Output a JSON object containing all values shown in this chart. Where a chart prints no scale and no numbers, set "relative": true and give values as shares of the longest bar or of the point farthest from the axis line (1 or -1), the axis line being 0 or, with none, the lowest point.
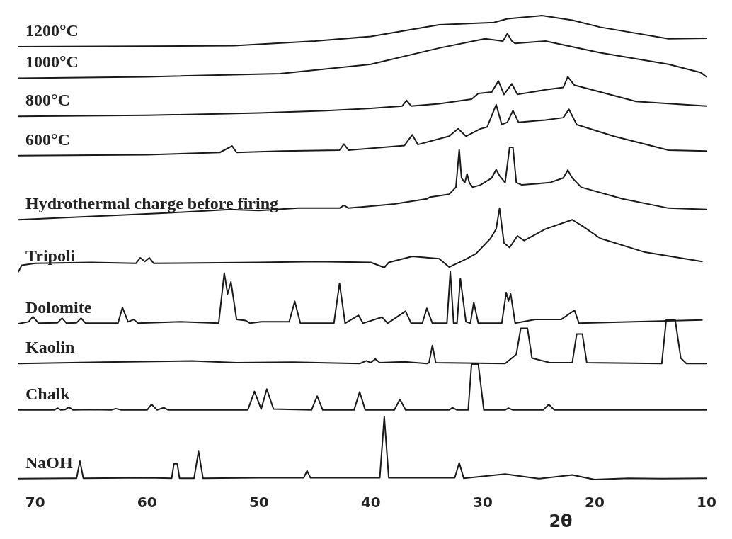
{
  "chart_data": {
    "type": "line",
    "xlabel": "2θ",
    "xlim": [
      71.5,
      10
    ],
    "xticks": [
      70,
      60,
      50,
      40,
      30,
      20,
      10
    ],
    "relative": true,
    "marker": "none",
    "line_style": "solid",
    "series": [
      {
        "name": "1200°C",
        "color": "#1a1a1a",
        "x": [
          71.5,
          60,
          52.2,
          45,
          40.0,
          33.9,
          29,
          27.8,
          24.7,
          22,
          19.5,
          13.4,
          10
        ],
        "values": [
          0.933,
          0.934,
          0.935,
          0.945,
          0.955,
          0.98,
          0.985,
          0.993,
          1.0,
          0.99,
          0.975,
          0.95,
          0.951
        ]
      },
      {
        "name": "1000°C",
        "color": "#1a1a1a",
        "x": [
          71.5,
          60,
          48.1,
          40.0,
          33.9,
          29.8,
          28.2,
          27.8,
          27.4,
          27.1,
          24.4,
          19.5,
          13.4,
          10.5,
          10
        ],
        "values": [
          0.865,
          0.868,
          0.875,
          0.895,
          0.93,
          0.95,
          0.945,
          0.961,
          0.945,
          0.94,
          0.945,
          0.92,
          0.895,
          0.877,
          0.868
        ]
      },
      {
        "name": "800°C",
        "color": "#1a1a1a",
        "x": [
          71.5,
          60,
          50,
          44.0,
          40,
          37.2,
          36.8,
          36.4,
          33.9,
          31,
          30.4,
          29.2,
          28.6,
          28.1,
          27.4,
          26.9,
          24.4,
          22.8,
          22.4,
          21.8,
          16.3,
          10
        ],
        "values": [
          0.783,
          0.785,
          0.79,
          0.795,
          0.8,
          0.805,
          0.817,
          0.805,
          0.81,
          0.82,
          0.832,
          0.835,
          0.859,
          0.83,
          0.853,
          0.83,
          0.84,
          0.845,
          0.868,
          0.85,
          0.815,
          0.805
        ]
      },
      {
        "name": "600°C",
        "color": "#1a1a1a",
        "x": [
          71.5,
          60,
          53.5,
          52.4,
          52.0,
          48,
          42.8,
          42.4,
          42.0,
          37,
          36.3,
          35.8,
          33,
          32.2,
          31.5,
          30.2,
          29.6,
          28.8,
          28.3,
          27.8,
          27.3,
          26.8,
          24.4,
          22.8,
          22.3,
          21.6,
          18.3,
          13.4,
          10
        ],
        "values": [
          0.698,
          0.7,
          0.705,
          0.719,
          0.705,
          0.708,
          0.71,
          0.723,
          0.71,
          0.72,
          0.743,
          0.722,
          0.74,
          0.756,
          0.74,
          0.756,
          0.76,
          0.808,
          0.765,
          0.77,
          0.795,
          0.77,
          0.775,
          0.78,
          0.798,
          0.765,
          0.74,
          0.71,
          0.708
        ]
      },
      {
        "name": "Hydrothermal charge before firing",
        "color": "#1a1a1a",
        "x": [
          71.5,
          67,
          62.4,
          58,
          52.6,
          50,
          46.5,
          42.8,
          42.4,
          42.0,
          37.9,
          35,
          34.7,
          33,
          32.4,
          32.1,
          31.9,
          31.6,
          31.4,
          31.2,
          30.9,
          30.2,
          29.2,
          28.8,
          28.5,
          28.0,
          27.6,
          27.3,
          27.0,
          26.5,
          24,
          22.8,
          22.4,
          22.0,
          21.2,
          17.5,
          13.4,
          10
        ],
        "values": [
          0.56,
          0.565,
          0.57,
          0.575,
          0.582,
          0.58,
          0.585,
          0.585,
          0.591,
          0.585,
          0.594,
          0.605,
          0.609,
          0.615,
          0.63,
          0.711,
          0.65,
          0.64,
          0.659,
          0.64,
          0.63,
          0.635,
          0.65,
          0.668,
          0.655,
          0.64,
          0.716,
          0.716,
          0.64,
          0.635,
          0.64,
          0.65,
          0.667,
          0.65,
          0.63,
          0.605,
          0.585,
          0.582
        ]
      },
      {
        "name": "Tripoli",
        "color": "#1a1a1a",
        "x": [
          71.5,
          71.2,
          70,
          65,
          61,
          60.6,
          60.2,
          59.8,
          59.4,
          50,
          45,
          40,
          38.8,
          38.4,
          36.3,
          33.9,
          33.0,
          31.5,
          30.6,
          29.3,
          28.8,
          28.5,
          28.1,
          27.6,
          26.9,
          26.3,
          24.4,
          22.0,
          21.0,
          19.5,
          15.5,
          10.4
        ],
        "values": [
          0.448,
          0.462,
          0.466,
          0.468,
          0.466,
          0.478,
          0.47,
          0.478,
          0.466,
          0.468,
          0.47,
          0.468,
          0.457,
          0.468,
          0.481,
          0.476,
          0.458,
          0.475,
          0.487,
          0.52,
          0.54,
          0.585,
          0.51,
          0.5,
          0.525,
          0.515,
          0.54,
          0.56,
          0.545,
          0.52,
          0.49,
          0.47
        ]
      },
      {
        "name": "Dolomite",
        "color": "#1a1a1a",
        "x": [
          71.5,
          70.6,
          70.2,
          69.7,
          68,
          67.6,
          67.2,
          66.3,
          65.9,
          65.5,
          62.6,
          62.2,
          61.7,
          61.2,
          60.8,
          57,
          53.6,
          53.1,
          52.8,
          52.5,
          52.0,
          51.2,
          50.8,
          49.8,
          47.3,
          46.8,
          46.3,
          43.3,
          42.8,
          42.3,
          41.1,
          40.7,
          39.0,
          38.5,
          36.9,
          36.4,
          35.4,
          35.0,
          34.5,
          33.2,
          32.9,
          32.6,
          32.3,
          32.0,
          31.5,
          31.1,
          30.8,
          30.4,
          28.3,
          27.9,
          27.7,
          27.5,
          27.1,
          25.3,
          23.0,
          21.8,
          21.4,
          10.4
        ],
        "values": [
          0.336,
          0.34,
          0.351,
          0.337,
          0.338,
          0.348,
          0.337,
          0.338,
          0.348,
          0.337,
          0.337,
          0.371,
          0.34,
          0.345,
          0.337,
          0.34,
          0.337,
          0.445,
          0.4,
          0.426,
          0.345,
          0.343,
          0.337,
          0.34,
          0.34,
          0.384,
          0.337,
          0.337,
          0.423,
          0.337,
          0.354,
          0.337,
          0.35,
          0.337,
          0.363,
          0.337,
          0.337,
          0.369,
          0.337,
          0.337,
          0.448,
          0.337,
          0.337,
          0.433,
          0.34,
          0.337,
          0.382,
          0.337,
          0.337,
          0.403,
          0.385,
          0.4,
          0.337,
          0.345,
          0.345,
          0.365,
          0.337,
          0.344
        ]
      },
      {
        "name": "Kaolin",
        "color": "#1a1a1a",
        "x": [
          71.5,
          64,
          56,
          52,
          47,
          41,
          40.4,
          40.0,
          39.6,
          39.2,
          37,
          35,
          34.8,
          34.5,
          34.2,
          28,
          27.4,
          27,
          26.6,
          26.0,
          25.6,
          24,
          22,
          21.6,
          21.1,
          20.7,
          14,
          13.6,
          12.8,
          12.3,
          11.8,
          10
        ],
        "values": [
          0.25,
          0.253,
          0.256,
          0.252,
          0.253,
          0.25,
          0.256,
          0.252,
          0.26,
          0.252,
          0.254,
          0.25,
          0.252,
          0.289,
          0.252,
          0.25,
          0.262,
          0.27,
          0.326,
          0.326,
          0.262,
          0.252,
          0.252,
          0.314,
          0.314,
          0.252,
          0.25,
          0.344,
          0.344,
          0.262,
          0.25,
          0.25
        ]
      },
      {
        "name": "Chalk",
        "color": "#1a1a1a",
        "x": [
          71.5,
          68.3,
          68.0,
          67.7,
          67.3,
          67.0,
          66.6,
          65,
          63.2,
          62.8,
          62.3,
          60,
          59.6,
          59.1,
          58.5,
          58.1,
          51,
          50.4,
          49.8,
          49.3,
          48.7,
          45.3,
          44.8,
          44.3,
          41.5,
          41.0,
          40.5,
          37.9,
          37.4,
          36.9,
          33,
          32.7,
          32.3,
          31.3,
          31.0,
          30.4,
          29.9,
          28,
          27.7,
          27.3,
          24.6,
          24.1,
          23.6,
          10
        ],
        "values": [
          0.15,
          0.15,
          0.154,
          0.15,
          0.151,
          0.156,
          0.15,
          0.151,
          0.15,
          0.153,
          0.15,
          0.15,
          0.162,
          0.15,
          0.155,
          0.15,
          0.15,
          0.19,
          0.152,
          0.195,
          0.152,
          0.15,
          0.18,
          0.15,
          0.15,
          0.189,
          0.15,
          0.15,
          0.173,
          0.15,
          0.15,
          0.155,
          0.15,
          0.15,
          0.249,
          0.249,
          0.15,
          0.15,
          0.154,
          0.15,
          0.15,
          0.162,
          0.15,
          0.15
        ]
      },
      {
        "name": "NaOH",
        "color": "#1a1a1a",
        "x": [
          71.5,
          67,
          66.3,
          66.0,
          65.7,
          60,
          57.8,
          57.6,
          57.3,
          57.1,
          55.8,
          55.4,
          55.0,
          50,
          46,
          45.7,
          45.4,
          39.2,
          38.8,
          38.4,
          32.5,
          32.1,
          31.7,
          28,
          25,
          22,
          20,
          17,
          14,
          10
        ],
        "values": [
          0.002,
          0.003,
          0.003,
          0.04,
          0.003,
          0.004,
          0.003,
          0.034,
          0.034,
          0.003,
          0.003,
          0.061,
          0.003,
          0.004,
          0.004,
          0.019,
          0.004,
          0.004,
          0.135,
          0.004,
          0.004,
          0.036,
          0.003,
          0.012,
          0.002,
          0.01,
          0,
          0.003,
          0.002,
          0.003
        ]
      }
    ]
  }
}
